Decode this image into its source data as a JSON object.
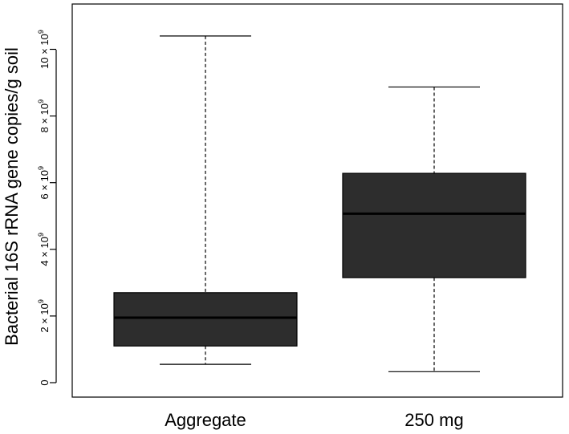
{
  "chart_data": {
    "type": "boxplot",
    "title": "",
    "xlabel": "",
    "ylabel": "Bacterial 16S rRNA gene copies/g soil",
    "y_unit_multiplier": "× 10⁹",
    "ylim": [
      0,
      10.8
    ],
    "yticks": [
      {
        "value": 0,
        "label": "0"
      },
      {
        "value": 2,
        "label": "2 × 10",
        "exp": "9"
      },
      {
        "value": 4,
        "label": "4 × 10",
        "exp": "9"
      },
      {
        "value": 6,
        "label": "6 × 10",
        "exp": "9"
      },
      {
        "value": 8,
        "label": "8 × 10",
        "exp": "9"
      },
      {
        "value": 10,
        "label": "10 × 10",
        "exp": "9"
      }
    ],
    "categories": [
      "Aggregate",
      "250 mg"
    ],
    "boxes": [
      {
        "category": "Aggregate",
        "whisker_low": 0.55,
        "q1": 1.1,
        "median": 1.95,
        "q3": 2.7,
        "whisker_high": 10.4
      },
      {
        "category": "250 mg",
        "whisker_low": 0.33,
        "q1": 3.15,
        "median": 5.07,
        "q3": 6.28,
        "whisker_high": 8.87
      }
    ],
    "box_fill": "#2d2d2d",
    "line_color": "#000000",
    "grid": false
  }
}
